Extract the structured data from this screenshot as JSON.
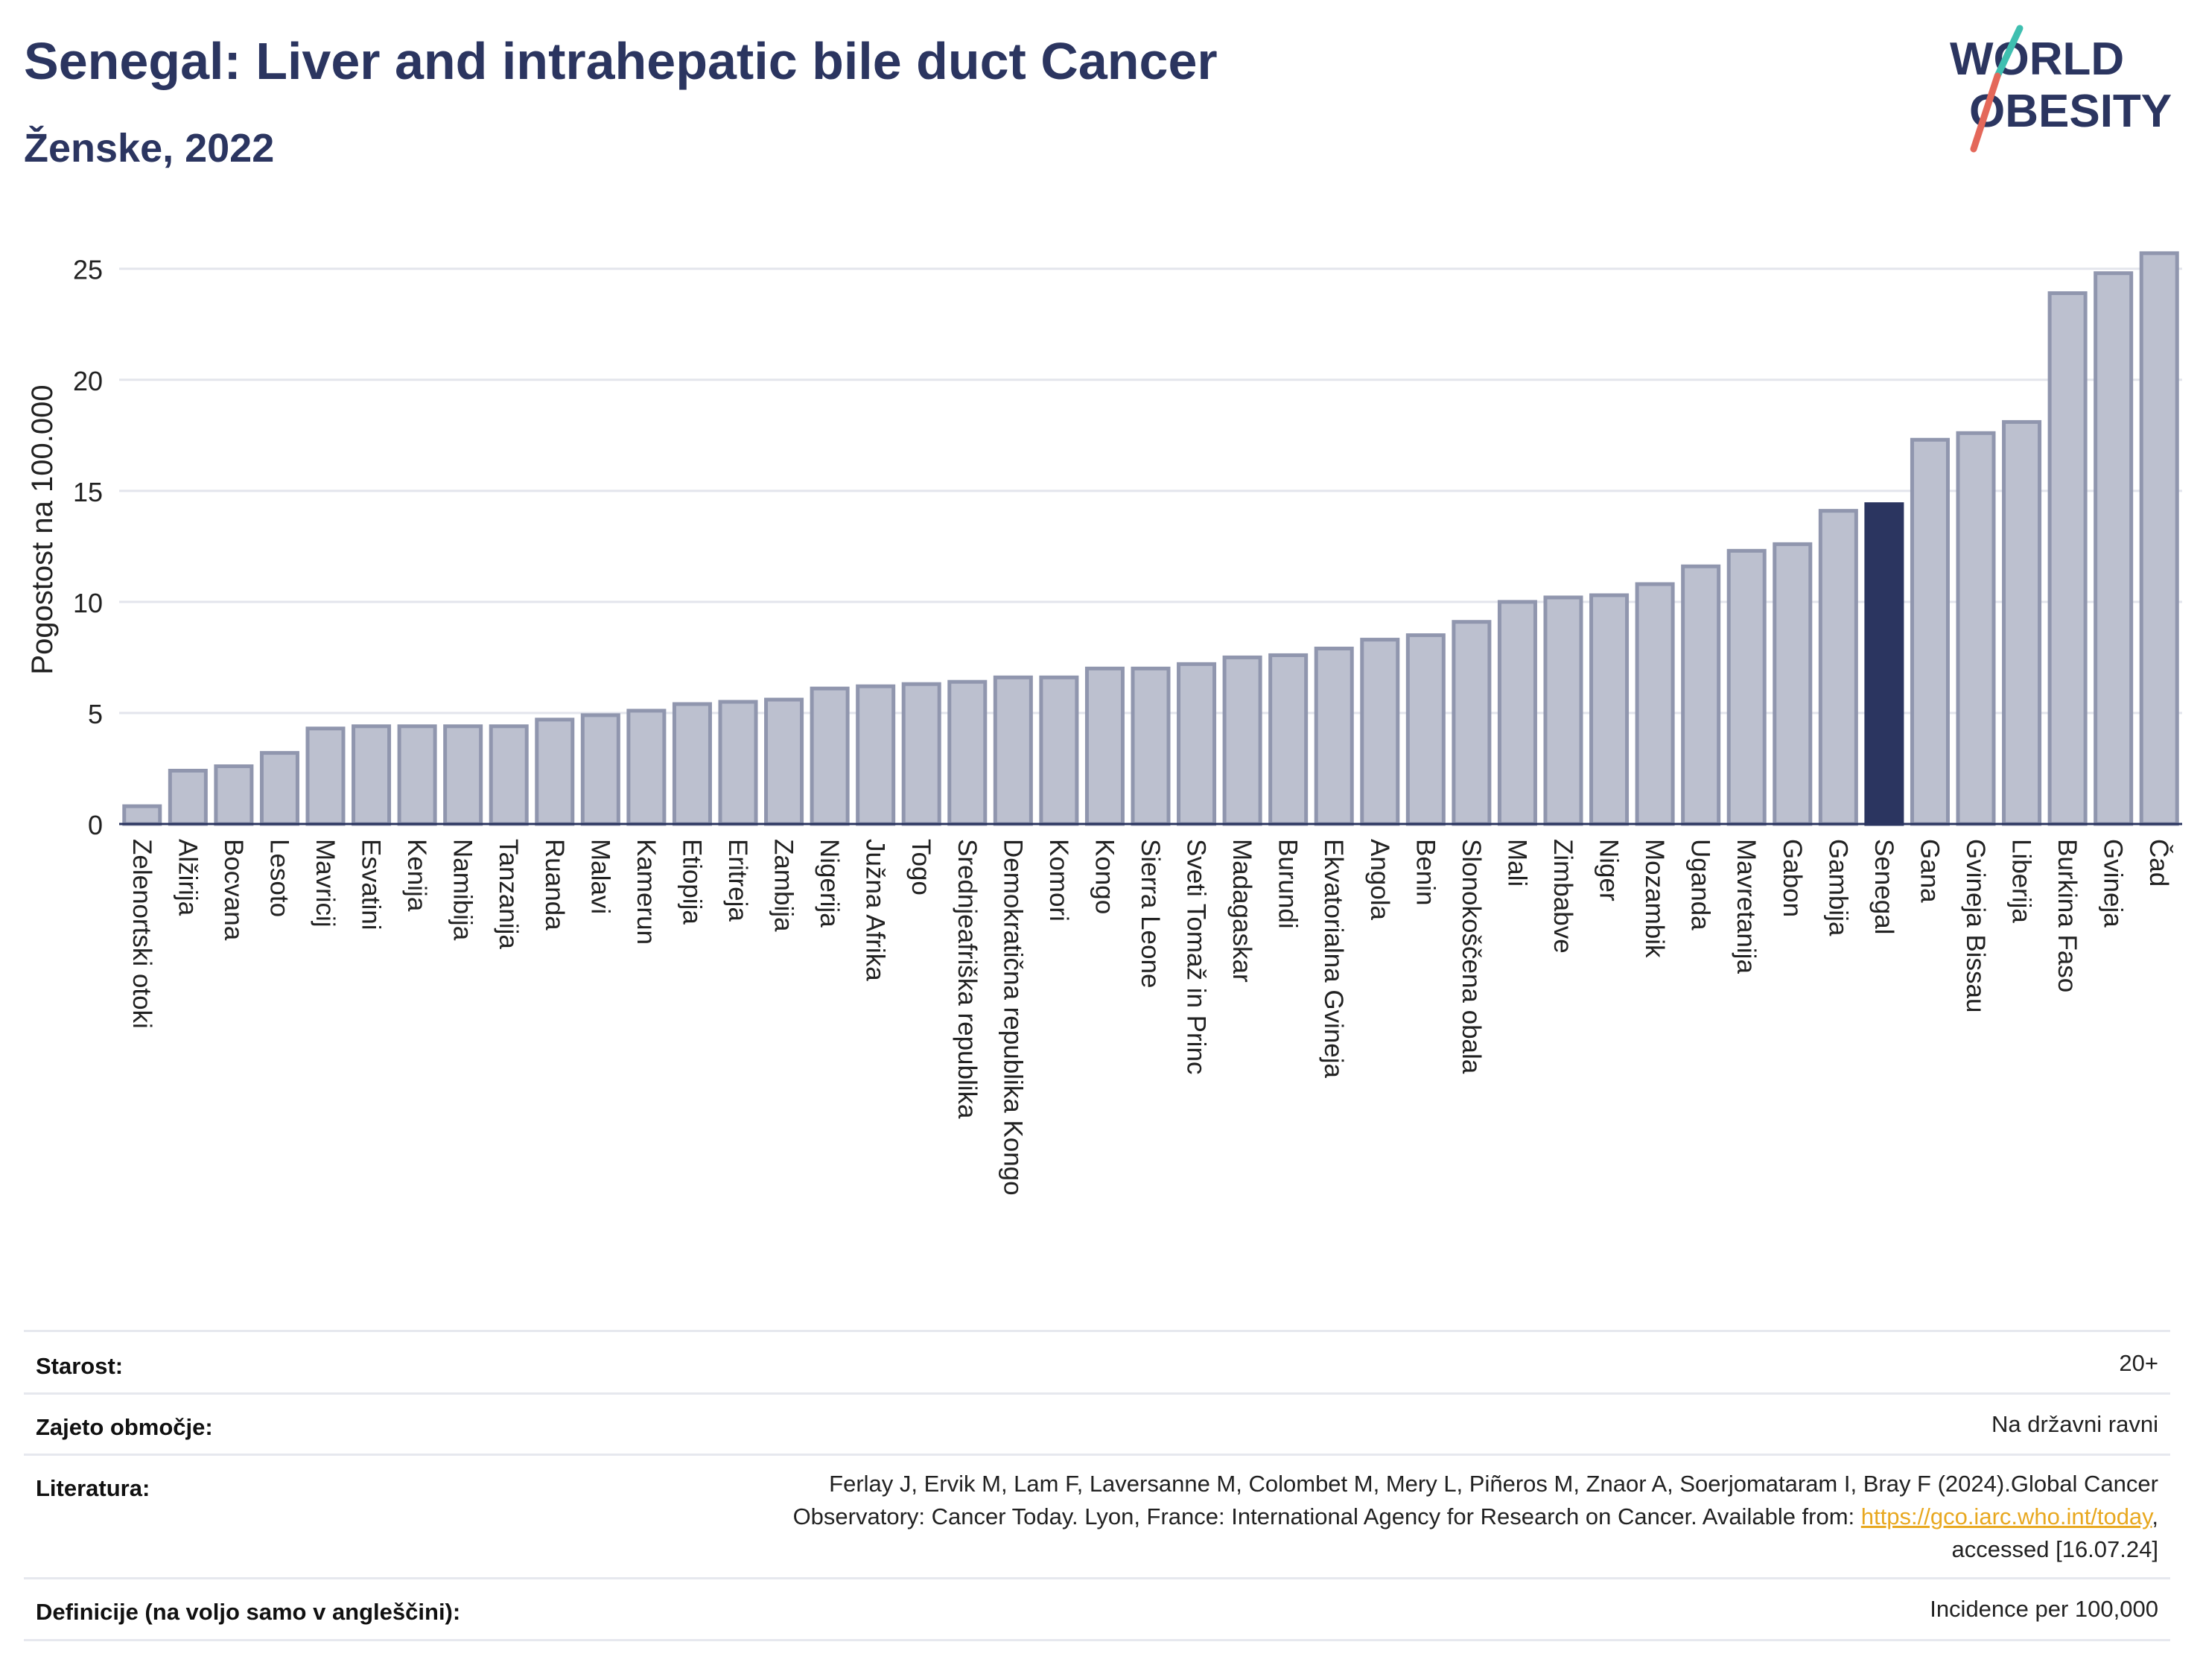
{
  "header": {
    "title": "Senegal: Liver and intrahepatic bile duct Cancer",
    "subtitle": "Ženske, 2022"
  },
  "logo": {
    "line1": "WORLD",
    "line2": "OBESITY"
  },
  "colors": {
    "bar": "#bcc0cf",
    "bar_border": "#9096ae",
    "highlight": "#2b3560",
    "title": "#2b3560",
    "grid": "#e3e5ec",
    "link": "#e8a820"
  },
  "chart_data": {
    "type": "bar",
    "ylabel": "Pogostost na 100.000",
    "ylim": [
      0,
      26.5
    ],
    "yticks": [
      0,
      5,
      10,
      15,
      20,
      25
    ],
    "highlight": "Senegal",
    "categories": [
      "Zelenortski otoki",
      "Alžirija",
      "Bocvana",
      "Lesoto",
      "Mavricij",
      "Esvatini",
      "Kenija",
      "Namibija",
      "Tanzanija",
      "Ruanda",
      "Malavi",
      "Kamerun",
      "Etiopija",
      "Eritreja",
      "Zambija",
      "Nigerija",
      "Južna Afrika",
      "Togo",
      "Srednjeafriška republika",
      "Demokratična republika Kongo",
      "Komori",
      "Kongo",
      "Sierra Leone",
      "Sveti Tomaž in Princ",
      "Madagaskar",
      "Burundi",
      "Ekvatorialna Gvineja",
      "Angola",
      "Benin",
      "Slonokoščena obala",
      "Mali",
      "Zimbabve",
      "Niger",
      "Mozambik",
      "Uganda",
      "Mavretanija",
      "Gabon",
      "Gambija",
      "Senegal",
      "Gana",
      "Gvineja Bissau",
      "Liberija",
      "Burkina Faso",
      "Gvineja",
      "Čad"
    ],
    "values": [
      0.8,
      2.4,
      2.6,
      3.2,
      4.3,
      4.4,
      4.4,
      4.4,
      4.4,
      4.7,
      4.9,
      5.1,
      5.4,
      5.5,
      5.6,
      6.1,
      6.2,
      6.3,
      6.4,
      6.6,
      6.6,
      7.0,
      7.0,
      7.2,
      7.5,
      7.6,
      7.9,
      8.3,
      8.5,
      9.1,
      10.0,
      10.2,
      10.3,
      10.8,
      11.6,
      12.3,
      12.6,
      14.1,
      14.4,
      17.3,
      17.6,
      18.1,
      23.9,
      24.8,
      25.7
    ]
  },
  "info": [
    {
      "label": "Starost:",
      "value": [
        "20+"
      ]
    },
    {
      "label": "Zajeto območje:",
      "value": [
        "Na državni ravni"
      ]
    },
    {
      "label": "Literatura:",
      "value": [
        "Ferlay J, Ervik M, Lam F, Laversanne M, Colombet M, Mery L, Piñeros M, Znaor A, Soerjomataram I, Bray F (2024).Global Cancer",
        "Observatory: Cancer Today. Lyon, France: International Agency for Research on Cancer. Available from: ",
        "accessed [16.07.24]"
      ],
      "link": "https://gco.iarc.who.int/today"
    },
    {
      "label": "Definicije (na voljo samo v angleščini):",
      "value": [
        "Incidence per 100,000"
      ]
    }
  ]
}
